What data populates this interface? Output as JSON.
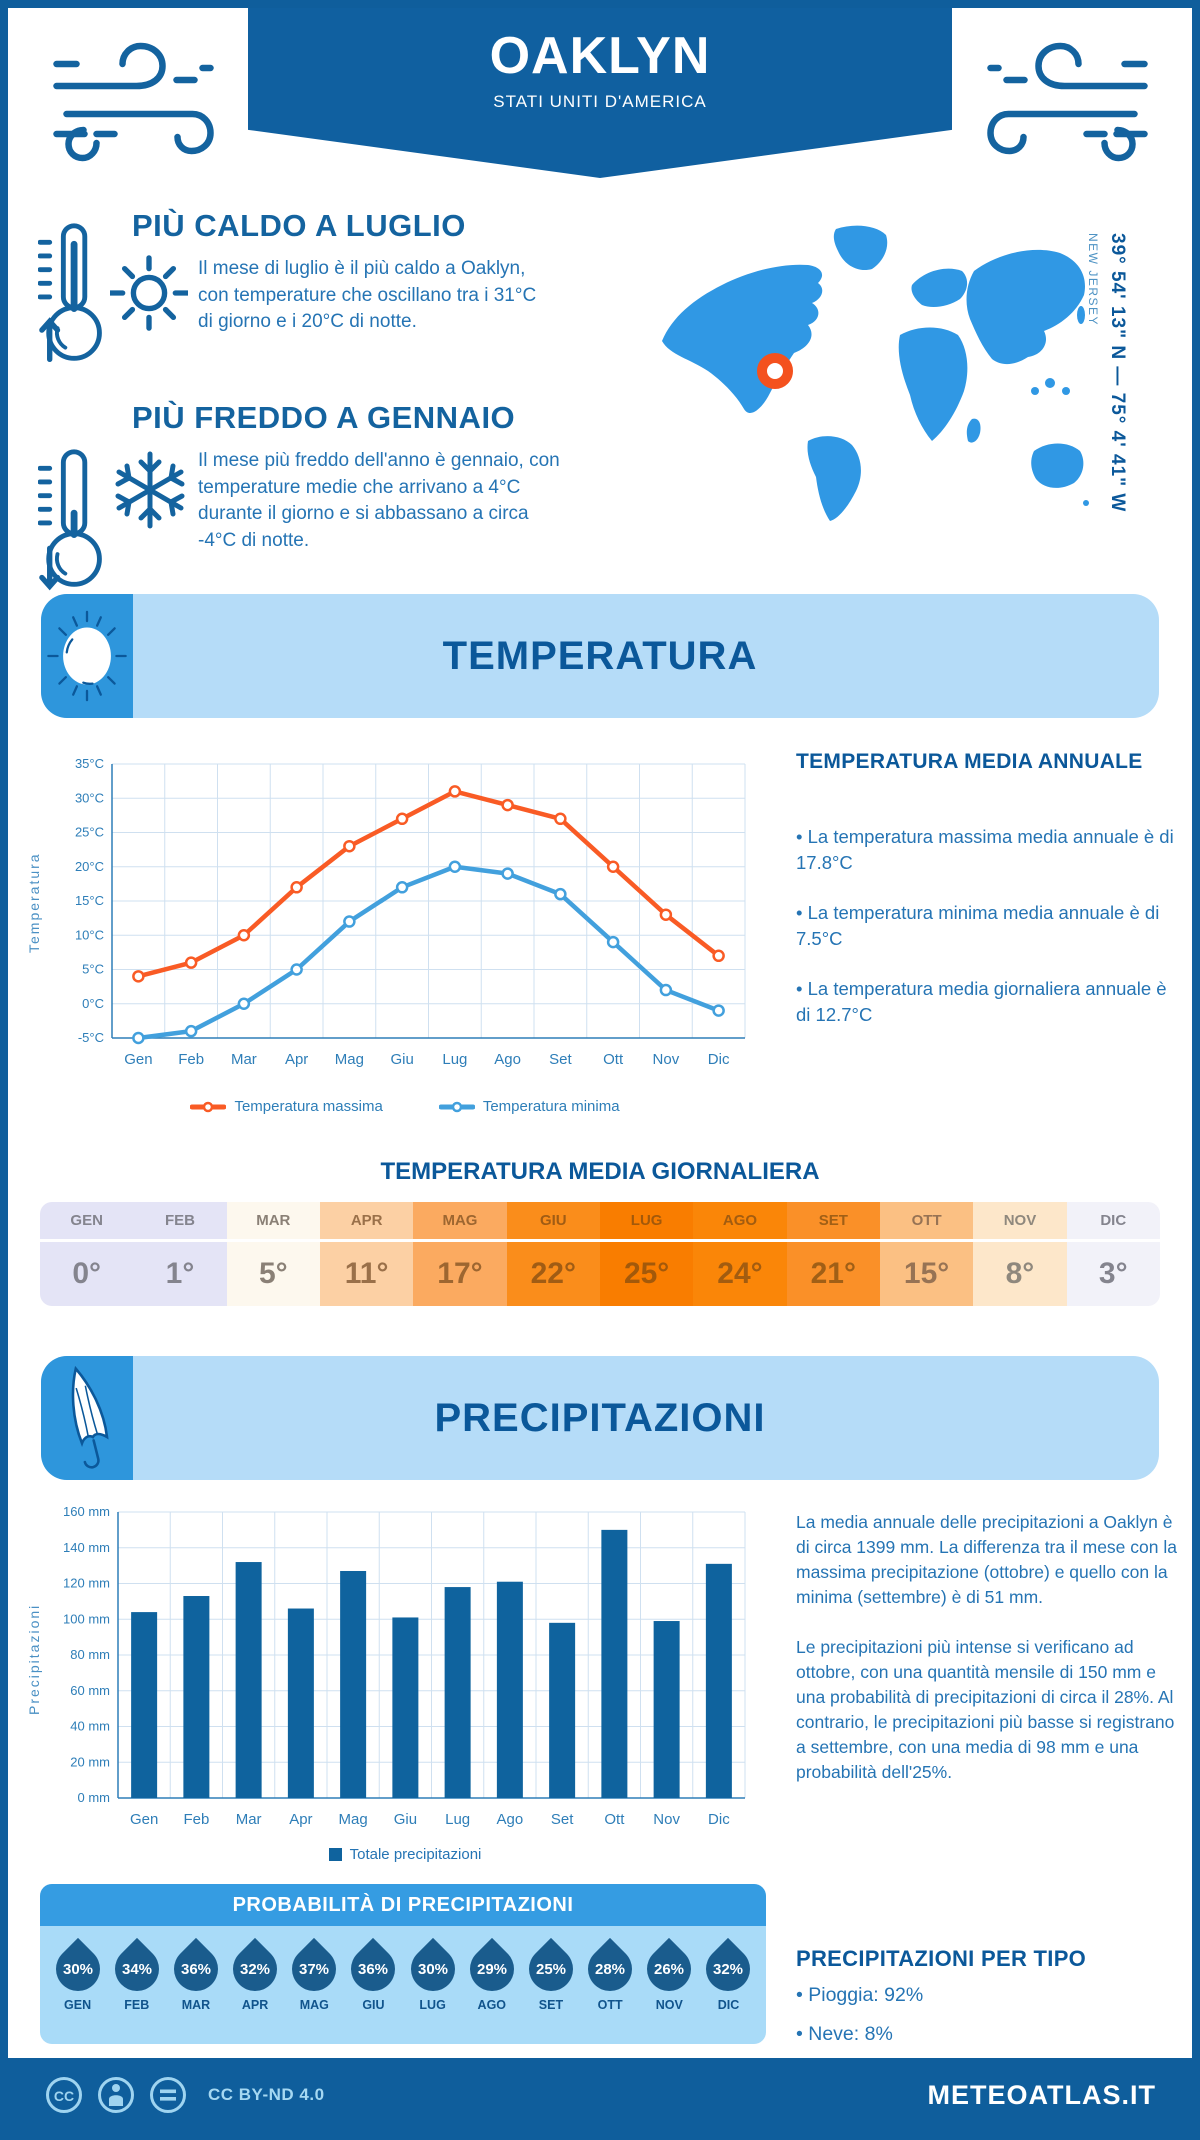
{
  "header": {
    "title": "OAKLYN",
    "subtitle": "STATI UNITI D'AMERICA"
  },
  "location": {
    "coords": "39° 54' 13\" N — 75° 4' 41\" W",
    "region": "NEW JERSEY"
  },
  "highlights": [
    {
      "title": "PIÙ CALDO A LUGLIO",
      "text": "Il mese di luglio è il più caldo a Oaklyn, con temperature che oscillano tra i 31°C di giorno e i 20°C di notte."
    },
    {
      "title": "PIÙ FREDDO A GENNAIO",
      "text": "Il mese più freddo dell'anno è gennaio, con temperature medie che arrivano a 4°C durante il giorno e si abbassano a circa -4°C di notte."
    }
  ],
  "temperature_section": {
    "title": "TEMPERATURA",
    "stats_title": "TEMPERATURA MEDIA ANNUALE",
    "stats": [
      "• La temperatura massima media annuale è di 17.8°C",
      "• La temperatura minima media annuale è di 7.5°C",
      "• La temperatura media giornaliera annuale è di 12.7°C"
    ],
    "table_title": "TEMPERATURA MEDIA GIORNALIERA"
  },
  "daily_temp_table": {
    "months": [
      "GEN",
      "FEB",
      "MAR",
      "APR",
      "MAG",
      "GIU",
      "LUG",
      "AGO",
      "SET",
      "OTT",
      "NOV",
      "DIC"
    ],
    "values": [
      "0°",
      "1°",
      "5°",
      "11°",
      "17°",
      "22°",
      "25°",
      "24°",
      "21°",
      "15°",
      "8°",
      "3°"
    ],
    "bg": [
      "#e4e4f6",
      "#e4e4f6",
      "#fdf8ee",
      "#fcd0a4",
      "#fbaa60",
      "#fa8d1b",
      "#f97d00",
      "#fa8608",
      "#fa9028",
      "#fbc083",
      "#fde7ca",
      "#f2f2f9"
    ],
    "text": [
      "#84848e",
      "#84848e",
      "#8a8076",
      "#9a7049",
      "#9d6630",
      "#a05c14",
      "#a3590a",
      "#a25c10",
      "#a05f16",
      "#977354",
      "#8f887d",
      "#84848e"
    ]
  },
  "precipitation_section": {
    "title": "PRECIPITAZIONI",
    "p1": "La media annuale delle precipitazioni a Oaklyn è di circa 1399 mm. La differenza tra il mese con la massima precipitazione (ottobre) e quello con la minima (settembre) è di 51 mm.",
    "p2": "Le precipitazioni più intense si verificano ad ottobre, con una quantità mensile di 150 mm e una probabilità di precipitazioni di circa il 28%. Al contrario, le precipitazioni più basse si registrano a settembre, con una media di 98 mm e una probabilità dell'25%.",
    "prob_title": "PROBABILITÀ DI PRECIPITAZIONI",
    "prob_months": [
      "GEN",
      "FEB",
      "MAR",
      "APR",
      "MAG",
      "GIU",
      "LUG",
      "AGO",
      "SET",
      "OTT",
      "NOV",
      "DIC"
    ],
    "prob_values": [
      "30%",
      "34%",
      "36%",
      "32%",
      "37%",
      "36%",
      "30%",
      "29%",
      "25%",
      "28%",
      "26%",
      "32%"
    ],
    "type_title": "PRECIPITAZIONI PER TIPO",
    "types": [
      "• Pioggia: 92%",
      "• Neve: 8%"
    ]
  },
  "chart_data": [
    {
      "type": "line",
      "title": "Temperatura",
      "categories": [
        "Gen",
        "Feb",
        "Mar",
        "Apr",
        "Mag",
        "Giu",
        "Lug",
        "Ago",
        "Set",
        "Ott",
        "Nov",
        "Dic"
      ],
      "ylabel": "Temperatura",
      "ylim": [
        -5,
        35
      ],
      "ytick_step": 5,
      "ytick_suffix": "°C",
      "grid": true,
      "legend_position": "bottom",
      "series": [
        {
          "name": "Temperatura massima",
          "color": "#f95b25",
          "values": [
            4,
            6,
            10,
            17,
            23,
            27,
            31,
            29,
            27,
            20,
            13,
            7
          ]
        },
        {
          "name": "Temperatura minima",
          "color": "#42a0dd",
          "values": [
            -5,
            -4,
            0,
            5,
            12,
            17,
            20,
            19,
            16,
            9,
            2,
            -1
          ]
        }
      ]
    },
    {
      "type": "bar",
      "title": "Precipitazioni",
      "categories": [
        "Gen",
        "Feb",
        "Mar",
        "Apr",
        "Mag",
        "Giu",
        "Lug",
        "Ago",
        "Set",
        "Ott",
        "Nov",
        "Dic"
      ],
      "ylabel": "Precipitazioni",
      "ylim": [
        0,
        160
      ],
      "ytick_step": 20,
      "ytick_suffix": " mm",
      "grid": true,
      "legend": "Totale precipitazioni",
      "color": "#0f639e",
      "values": [
        104,
        113,
        132,
        106,
        127,
        101,
        118,
        121,
        98,
        150,
        99,
        131
      ]
    }
  ],
  "footer": {
    "license": "CC BY-ND 4.0",
    "site": "METEOATLAS.IT"
  },
  "colors": {
    "accent_dark": "#0f5e9c",
    "accent_mid": "#2e96dc",
    "panel_light": "#b5dcf8",
    "marker_orange": "#f4511e",
    "map_blue": "#3098e4"
  }
}
